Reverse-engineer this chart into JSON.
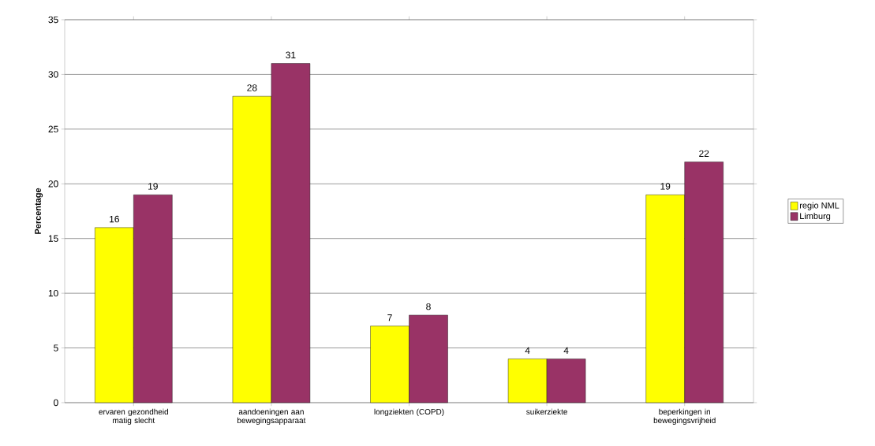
{
  "chart_data": {
    "type": "bar",
    "ylabel": "Percentage",
    "categories": [
      "ervaren gezondheid matig slecht",
      "aandoeningen aan bewegingsapparaat",
      "longziekten (COPD)",
      "suikerziekte",
      "beperkingen in bewegingsvrijheid"
    ],
    "series": [
      {
        "name": "regio NML",
        "color": "#ffff00",
        "values": [
          16,
          28,
          7,
          4,
          19
        ]
      },
      {
        "name": "Limburg",
        "color": "#993366",
        "values": [
          19,
          31,
          8,
          4,
          22
        ]
      }
    ],
    "ylim": [
      0,
      35
    ],
    "yticks": [
      0,
      5,
      10,
      15,
      20,
      25,
      30,
      35
    ],
    "grid": "y",
    "legend": "right",
    "data_labels": true
  }
}
